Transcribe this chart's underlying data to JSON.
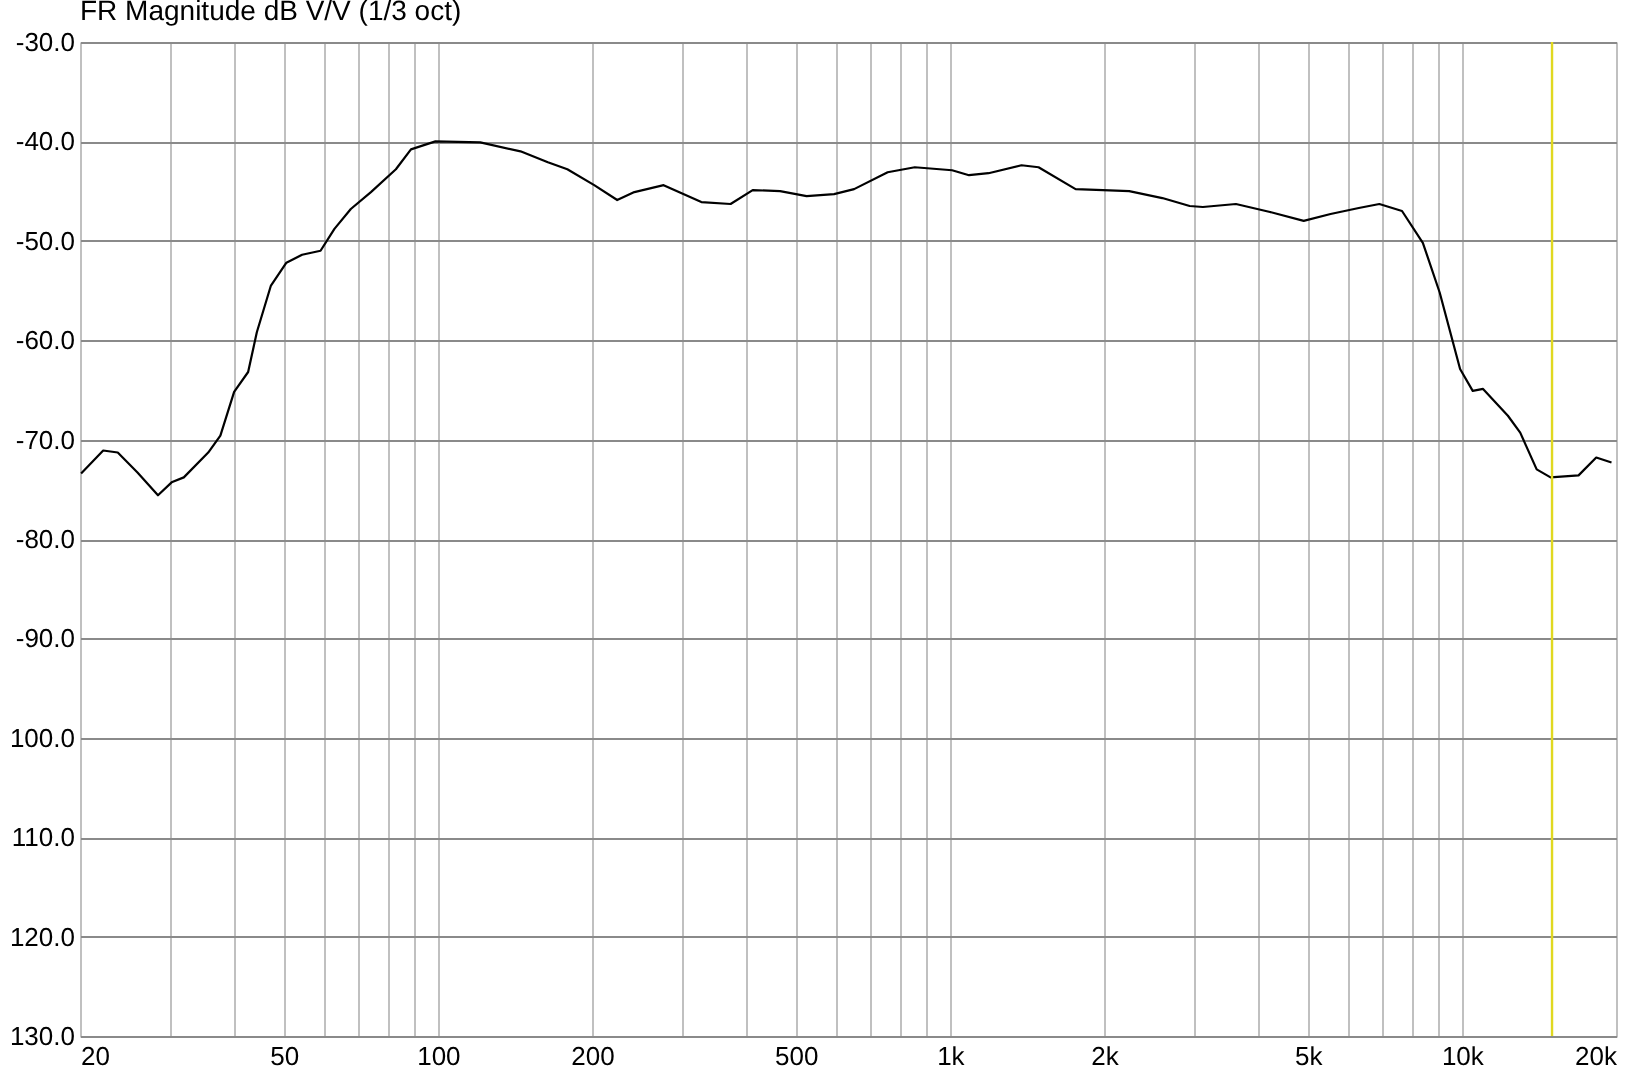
{
  "chart_data": {
    "type": "line",
    "title": "FR Magnitude dB V/V (1/3 oct)",
    "x": [
      20.1,
      22.2,
      23.7,
      25.9,
      28.4,
      30.2,
      31.9,
      35.6,
      37.6,
      40.0,
      42.6,
      44.3,
      47.2,
      50.6,
      54.3,
      59.0,
      62.8,
      67.6,
      74.0,
      82.8,
      88.6,
      98.9,
      121,
      145,
      164,
      179,
      202,
      224,
      242,
      276,
      327,
      373,
      412,
      466,
      525,
      594,
      650,
      756,
      854,
      1010,
      1090,
      1190,
      1380,
      1490,
      1760,
      1990,
      2240,
      2600,
      2940,
      3120,
      3620,
      4220,
      4910,
      5540,
      6290,
      6900,
      7640,
      8390,
      9050,
      9920,
      10500,
      11000,
      12300,
      13000,
      14000,
      14900,
      16900,
      18300,
      19600
    ],
    "series": [
      {
        "color": "#000000",
        "values": [
          -73.4,
          -71.1,
          -71.3,
          -73.3,
          -75.6,
          -74.3,
          -73.8,
          -71.3,
          -69.6,
          -65.2,
          -63.2,
          -59.2,
          -54.5,
          -52.2,
          -51.4,
          -51.0,
          -48.8,
          -46.8,
          -45.1,
          -42.8,
          -40.8,
          -40.0,
          -40.1,
          -41.0,
          -42.1,
          -42.8,
          -44.4,
          -45.9,
          -45.1,
          -44.4,
          -46.1,
          -46.3,
          -44.9,
          -45.0,
          -45.5,
          -45.3,
          -44.8,
          -43.1,
          -42.6,
          -42.9,
          -43.4,
          -43.2,
          -42.4,
          -42.6,
          -44.8,
          -44.9,
          -45.0,
          -45.7,
          -46.5,
          -46.6,
          -46.3,
          -47.1,
          -48.0,
          -47.3,
          -46.7,
          -46.3,
          -47.0,
          -50.2,
          -55.2,
          -62.9,
          -65.1,
          -64.9,
          -67.6,
          -69.3,
          -73.0,
          -73.8,
          -73.6,
          -71.8,
          -72.3
        ]
      }
    ],
    "xlim": [
      20,
      20000
    ],
    "ylim": [
      -130,
      -30
    ],
    "log": "x",
    "grid": true,
    "xticks": [
      20,
      {
        "value": 30,
        "label": null
      },
      {
        "value": 40,
        "label": null
      },
      50,
      {
        "value": 60,
        "label": null
      },
      {
        "value": 70,
        "label": null
      },
      {
        "value": 80,
        "label": null
      },
      {
        "value": 90,
        "label": null
      },
      100,
      200,
      {
        "value": 300,
        "label": null
      },
      {
        "value": 400,
        "label": null
      },
      500,
      {
        "value": 600,
        "label": null
      },
      {
        "value": 700,
        "label": null
      },
      {
        "value": 800,
        "label": null
      },
      {
        "value": 900,
        "label": null
      },
      {
        "value": 1000,
        "label": "1k"
      },
      {
        "value": 2000,
        "label": "2k"
      },
      {
        "value": 3000,
        "label": null
      },
      {
        "value": 4000,
        "label": null
      },
      {
        "value": 5000,
        "label": "5k"
      },
      {
        "value": 6000,
        "label": null
      },
      {
        "value": 7000,
        "label": null
      },
      {
        "value": 8000,
        "label": null
      },
      {
        "value": 9000,
        "label": null
      },
      {
        "value": 10000,
        "label": "10k"
      },
      {
        "value": 20000,
        "label": "20k"
      }
    ],
    "yticks": [
      {
        "value": -30,
        "label": "-30.0"
      },
      {
        "value": -40,
        "label": "-40.0"
      },
      {
        "value": -50,
        "label": "-50.0"
      },
      {
        "value": -60,
        "label": "-60.0"
      },
      {
        "value": -70,
        "label": "-70.0"
      },
      {
        "value": -80,
        "label": "-80.0"
      },
      {
        "value": -90,
        "label": "-90.0"
      },
      {
        "value": -100,
        "label": "100.0"
      },
      {
        "value": -110,
        "label": "110.0"
      },
      {
        "value": -120,
        "label": "120.0"
      },
      {
        "value": -130,
        "label": "130.0"
      }
    ],
    "ref_lines": [
      {
        "axis": "x",
        "value": 15000,
        "color": "#e0d820"
      }
    ]
  }
}
